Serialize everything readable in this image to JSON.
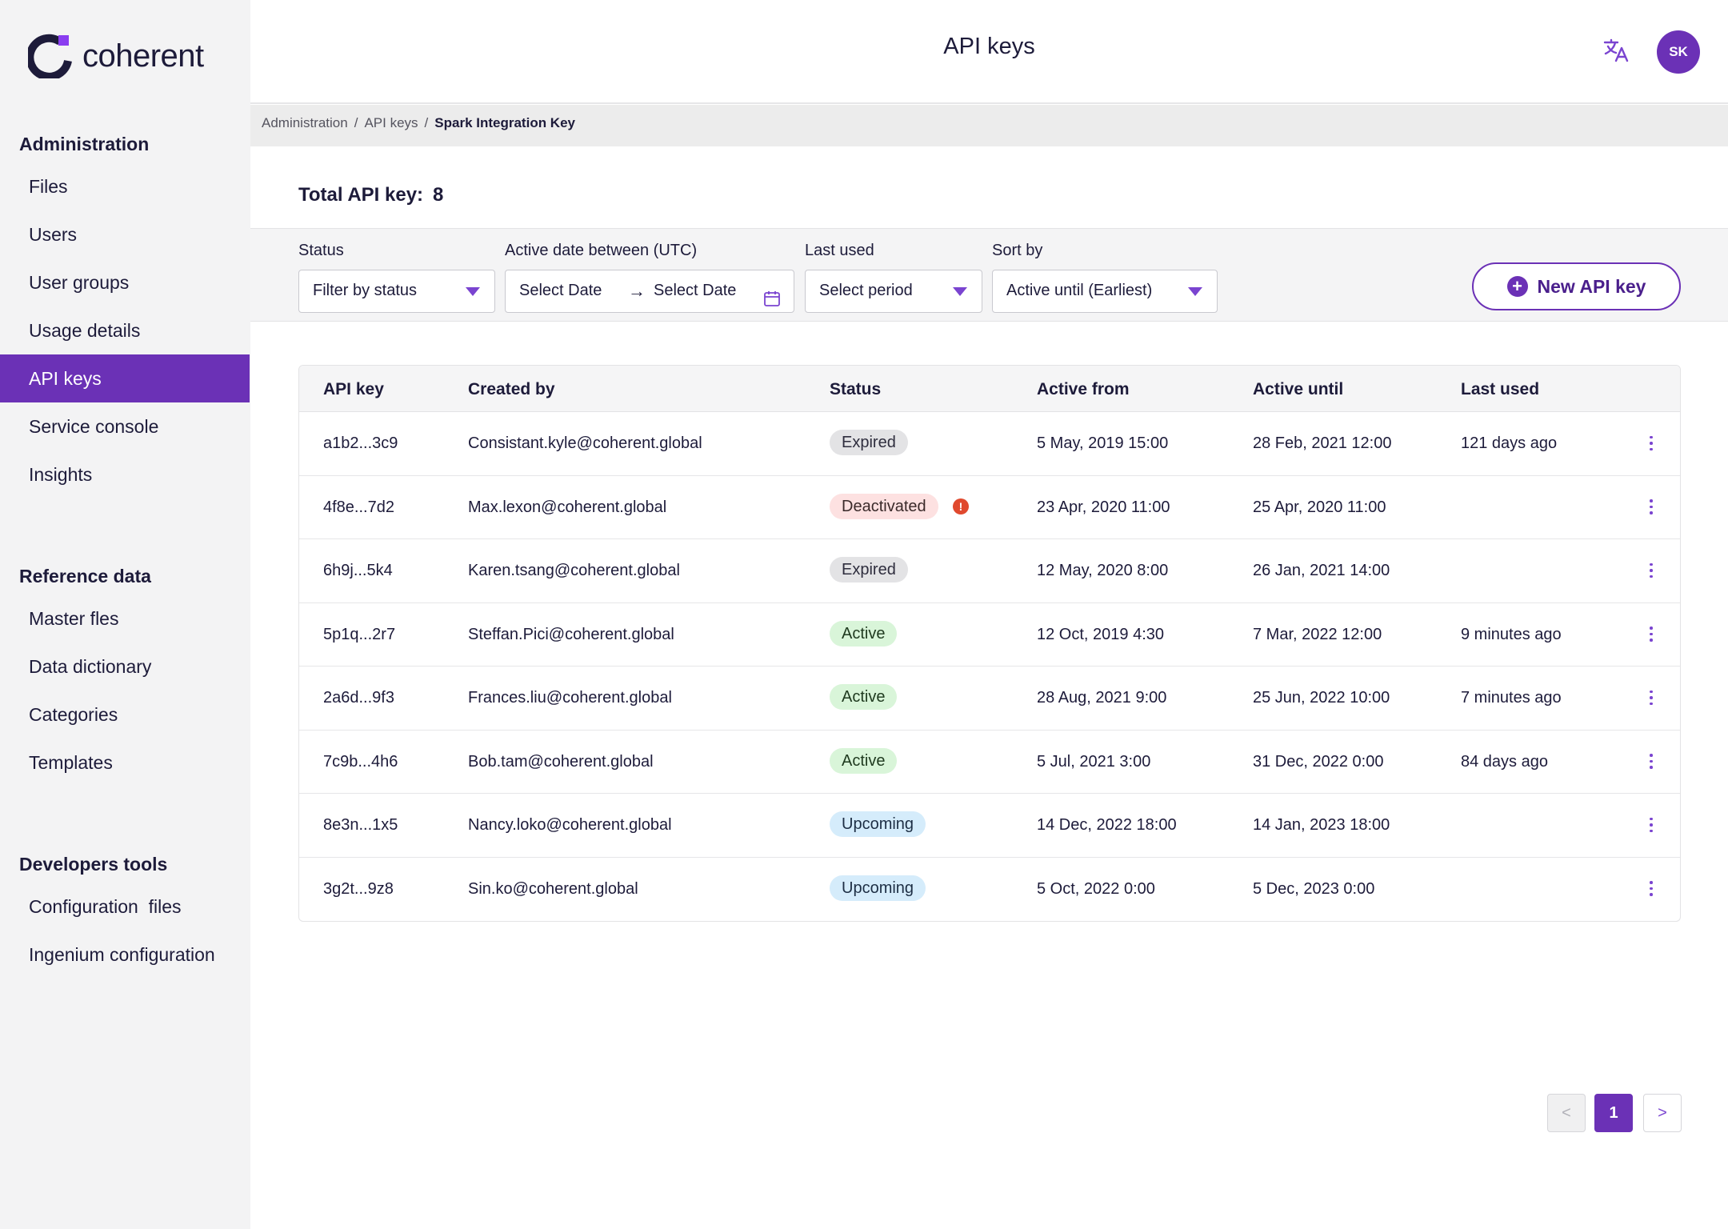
{
  "brand": {
    "name": "coherent",
    "accent": "#6b31b6"
  },
  "header": {
    "title": "API keys",
    "avatar_initials": "SK"
  },
  "breadcrumb": {
    "items": [
      "Administration",
      "API keys"
    ],
    "current": "Spark Integration Key"
  },
  "sidebar": {
    "sections": [
      {
        "heading": "Administration",
        "items": [
          "Files",
          "Users",
          "User groups",
          "Usage details",
          "API keys",
          "Service console",
          "Insights"
        ]
      },
      {
        "heading": "Reference data",
        "items": [
          "Master fles",
          "Data dictionary",
          "Categories",
          "Templates"
        ]
      },
      {
        "heading": "Developers tools",
        "items": [
          "Configuration  files",
          "Ingenium configuration"
        ]
      }
    ],
    "active_item": "API keys"
  },
  "summary": {
    "label": "Total API key:",
    "count": "8"
  },
  "filters": {
    "status": {
      "label": "Status",
      "value": "Filter by status"
    },
    "date": {
      "label": "Active date between (UTC)",
      "from": "Select Date",
      "arrow": "→",
      "to": "Select Date"
    },
    "last_used": {
      "label": "Last used",
      "value": "Select period"
    },
    "sort": {
      "label": "Sort by",
      "value": "Active until (Earliest)"
    }
  },
  "new_button": {
    "label": "New API key",
    "icon": "+"
  },
  "table": {
    "columns": [
      "API key",
      "Created by",
      "Status",
      "Active from",
      "Active until",
      "Last used"
    ],
    "rows": [
      {
        "key": "a1b2...3c9",
        "created_by": "Consistant.kyle@coherent.global",
        "status": "Expired",
        "from": "5 May, 2019 15:00",
        "until": "28 Feb, 2021 12:00",
        "last_used": "121 days ago"
      },
      {
        "key": "4f8e...7d2",
        "created_by": "Max.lexon@coherent.global",
        "status": "Deactivated",
        "warning": "!",
        "from": "23 Apr, 2020 11:00",
        "until": "25 Apr, 2020 11:00",
        "last_used": ""
      },
      {
        "key": "6h9j...5k4",
        "created_by": "Karen.tsang@coherent.global",
        "status": "Expired",
        "from": "12 May, 2020 8:00",
        "until": "26 Jan, 2021 14:00",
        "last_used": ""
      },
      {
        "key": "5p1q...2r7",
        "created_by": "Steffan.Pici@coherent.global",
        "status": "Active",
        "from": "12 Oct, 2019 4:30",
        "until": "7 Mar, 2022 12:00",
        "last_used": "9 minutes ago"
      },
      {
        "key": "2a6d...9f3",
        "created_by": "Frances.liu@coherent.global",
        "status": "Active",
        "from": "28 Aug, 2021 9:00",
        "until": "25 Jun, 2022 10:00",
        "last_used": "7 minutes ago"
      },
      {
        "key": "7c9b...4h6",
        "created_by": "Bob.tam@coherent.global",
        "status": "Active",
        "from": "5 Jul, 2021 3:00",
        "until": "31 Dec, 2022 0:00",
        "last_used": "84 days ago"
      },
      {
        "key": "8e3n...1x5",
        "created_by": "Nancy.loko@coherent.global",
        "status": "Upcoming",
        "from": "14 Dec, 2022 18:00",
        "until": "14 Jan, 2023 18:00",
        "last_used": ""
      },
      {
        "key": "3g2t...9z8",
        "created_by": "Sin.ko@coherent.global",
        "status": "Upcoming",
        "from": "5 Oct, 2022 0:00",
        "until": "5 Dec, 2023 0:00",
        "last_used": ""
      }
    ]
  },
  "pagination": {
    "prev": "<",
    "current": "1",
    "next": ">"
  }
}
